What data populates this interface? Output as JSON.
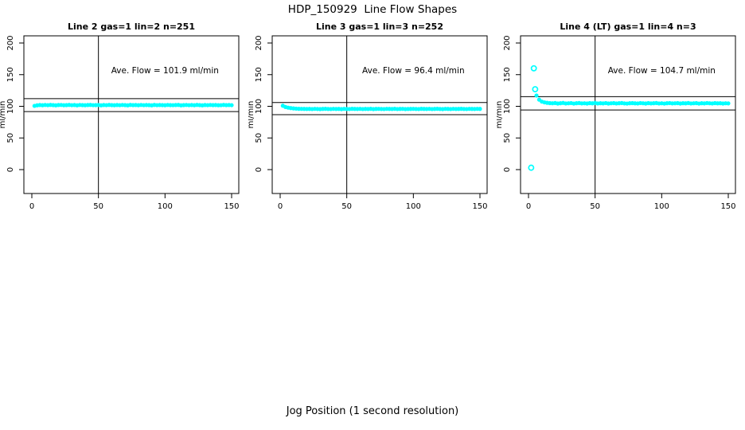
{
  "figure": {
    "title": "HDP_150929  Line Flow Shapes",
    "xlabel": "Jog Position (1 second resolution)",
    "background_color": "#ffffff",
    "point_color": "#00ffff",
    "axis_color": "#000000"
  },
  "chart_data": [
    {
      "type": "scatter",
      "title": "Line 2 gas=1 lin=2 n=251",
      "ylabel": "ml/min",
      "annotation": "Ave. Flow =  101.9  ml/min",
      "ave_flow": 101.9,
      "n": 251,
      "xlim": [
        -6,
        155.5
      ],
      "ylim": [
        -38,
        211
      ],
      "xticks": [
        0,
        50,
        100,
        150
      ],
      "yticks": [
        0,
        50,
        100,
        150,
        200
      ],
      "vline_x": 50,
      "hlines": [
        112.1,
        91.7
      ],
      "legend": "none",
      "grid": false,
      "points": {
        "x": [
          2,
          4,
          6,
          8,
          10,
          12,
          14,
          16,
          18,
          20,
          22,
          24,
          26,
          28,
          30,
          32,
          34,
          36,
          38,
          40,
          42,
          44,
          46,
          48,
          50,
          52,
          54,
          56,
          58,
          60,
          62,
          64,
          66,
          68,
          70,
          72,
          74,
          76,
          78,
          80,
          82,
          84,
          86,
          88,
          90,
          92,
          94,
          96,
          98,
          100,
          102,
          104,
          106,
          108,
          110,
          112,
          114,
          116,
          118,
          120,
          122,
          124,
          126,
          128,
          130,
          132,
          134,
          136,
          138,
          140,
          142,
          144,
          146,
          148,
          150
        ],
        "y": [
          100.7,
          101.6,
          102.0,
          101.7,
          102.1,
          101.8,
          102.2,
          101.9,
          101.6,
          102.0,
          102.1,
          101.7,
          101.9,
          102.2,
          101.8,
          102.0,
          101.6,
          102.1,
          101.9,
          101.7,
          102.0,
          102.2,
          101.8,
          101.9,
          102.1,
          101.6,
          102.0,
          101.8,
          102.2,
          101.9,
          101.7,
          102.0,
          101.8,
          102.1,
          101.9,
          101.6,
          102.2,
          101.9,
          102.0,
          101.7,
          102.1,
          101.8,
          102.0,
          101.9,
          101.6,
          102.2,
          101.8,
          102.0,
          101.9,
          101.7,
          102.1,
          101.9,
          101.8,
          102.0,
          102.2,
          101.6,
          101.9,
          102.1,
          101.8,
          102.0,
          101.7,
          102.2,
          101.9,
          101.6,
          102.0,
          101.8,
          102.1,
          101.9,
          102.0,
          101.7,
          101.8,
          102.2,
          101.9,
          102.0,
          101.8
        ]
      }
    },
    {
      "type": "scatter",
      "title": "Line 3 gas=1 lin=3 n=252",
      "ylabel": "ml/min",
      "annotation": "Ave. Flow =  96.4  ml/min",
      "ave_flow": 96.4,
      "n": 252,
      "xlim": [
        -6,
        155.5
      ],
      "ylim": [
        -38,
        211
      ],
      "xticks": [
        0,
        50,
        100,
        150
      ],
      "yticks": [
        0,
        50,
        100,
        150,
        200
      ],
      "vline_x": 50,
      "hlines": [
        106.0,
        86.8
      ],
      "legend": "none",
      "grid": false,
      "points": {
        "x": [
          2,
          4,
          6,
          8,
          10,
          12,
          14,
          16,
          18,
          20,
          22,
          24,
          26,
          28,
          30,
          32,
          34,
          36,
          38,
          40,
          42,
          44,
          46,
          48,
          50,
          52,
          54,
          56,
          58,
          60,
          62,
          64,
          66,
          68,
          70,
          72,
          74,
          76,
          78,
          80,
          82,
          84,
          86,
          88,
          90,
          92,
          94,
          96,
          98,
          100,
          102,
          104,
          106,
          108,
          110,
          112,
          114,
          116,
          118,
          120,
          122,
          124,
          126,
          128,
          130,
          132,
          134,
          136,
          138,
          140,
          142,
          144,
          146,
          148,
          150
        ],
        "y": [
          100.9,
          98.9,
          97.9,
          97.2,
          96.7,
          96.3,
          96.1,
          96.0,
          95.9,
          95.8,
          95.9,
          95.7,
          96.0,
          95.8,
          95.6,
          95.9,
          96.1,
          95.8,
          95.7,
          96.0,
          95.8,
          95.9,
          95.6,
          96.0,
          95.8,
          95.7,
          96.1,
          95.9,
          95.8,
          96.0,
          95.7,
          95.9,
          95.8,
          96.1,
          95.6,
          95.9,
          96.0,
          95.8,
          95.7,
          96.0,
          95.9,
          95.8,
          96.1,
          95.7,
          95.9,
          96.0,
          95.6,
          95.8,
          95.9,
          96.0,
          95.8,
          95.7,
          96.1,
          95.9,
          95.8,
          96.0,
          95.7,
          95.9,
          96.1,
          95.8,
          95.6,
          96.0,
          95.9,
          95.7,
          96.0,
          95.8,
          95.9,
          96.1,
          95.8,
          95.7,
          96.0,
          95.9,
          95.8,
          96.0,
          95.9
        ]
      }
    },
    {
      "type": "scatter",
      "title": "Line 4 (LT) gas=1 lin=4 n=3",
      "ylabel": "ml/min",
      "annotation": "Ave. Flow =  104.7  ml/min",
      "ave_flow": 104.7,
      "n": 3,
      "xlim": [
        -6,
        155.5
      ],
      "ylim": [
        -38,
        211
      ],
      "xticks": [
        0,
        50,
        100,
        150
      ],
      "yticks": [
        0,
        50,
        100,
        150,
        200
      ],
      "vline_x": 50,
      "hlines": [
        115.2,
        94.2
      ],
      "legend": "none",
      "grid": false,
      "points": {
        "x": [
          6,
          8,
          10,
          12,
          14,
          16,
          18,
          20,
          22,
          24,
          26,
          28,
          30,
          32,
          34,
          36,
          38,
          40,
          42,
          44,
          46,
          48,
          50,
          52,
          54,
          56,
          58,
          60,
          62,
          64,
          66,
          68,
          70,
          72,
          74,
          76,
          78,
          80,
          82,
          84,
          86,
          88,
          90,
          92,
          94,
          96,
          98,
          100,
          102,
          104,
          106,
          108,
          110,
          112,
          114,
          116,
          118,
          120,
          122,
          124,
          126,
          128,
          130,
          132,
          134,
          136,
          138,
          140,
          142,
          144,
          146,
          148,
          150
        ],
        "y": [
          117.0,
          110.5,
          107.5,
          106.2,
          105.5,
          105.0,
          104.8,
          105.2,
          104.4,
          104.9,
          105.3,
          104.5,
          104.8,
          105.1,
          104.3,
          104.9,
          105.2,
          104.6,
          104.8,
          104.4,
          105.0,
          104.7,
          105.3,
          104.5,
          104.9,
          104.6,
          105.1,
          104.4,
          104.8,
          105.0,
          104.5,
          104.9,
          105.2,
          104.6,
          104.3,
          104.9,
          105.0,
          104.7,
          104.5,
          105.1,
          104.8,
          104.4,
          105.0,
          104.6,
          104.9,
          105.2,
          104.5,
          104.8,
          104.3,
          104.9,
          105.1,
          104.6,
          104.8,
          105.0,
          104.4,
          104.9,
          104.7,
          105.2,
          104.5,
          104.8,
          105.0,
          104.3,
          104.9,
          104.6,
          105.1,
          104.8,
          104.5,
          105.0,
          104.7,
          104.9,
          104.4,
          104.8,
          104.6
        ]
      },
      "outliers": {
        "x": [
          2,
          4,
          5
        ],
        "y": [
          3,
          160,
          127
        ]
      }
    }
  ]
}
